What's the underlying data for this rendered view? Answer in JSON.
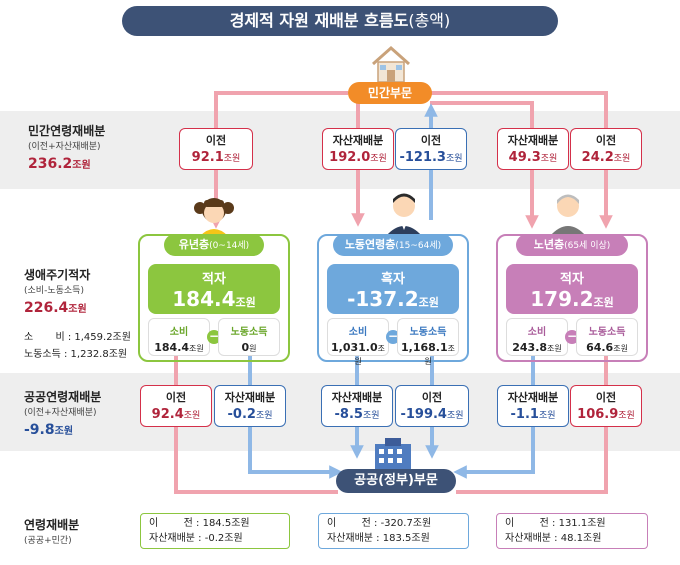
{
  "title": "경제적 자원 재배분 흐름도",
  "title_suffix": "(총액)",
  "private_sector": "민간부문",
  "public_sector": "공공(정부)부문",
  "unit": "조원",
  "unit_won": "원",
  "rows": {
    "private": {
      "label": "민간연령재배분",
      "sub": "(이전+자산재배분)",
      "value": "236.2"
    },
    "lifecycle": {
      "label": "생애주기적자",
      "sub": "(소비-노동소득)",
      "value": "226.4",
      "consumption_label": "소       비 :",
      "consumption": "1,459.2조원",
      "labor_label": "노동소득 :",
      "labor": "1,232.8조원"
    },
    "public": {
      "label": "공공연령재배분",
      "sub": "(이전+자산재배분)",
      "value": "-9.8"
    },
    "total": {
      "label": "연령재배분",
      "sub": "(공공+민간)"
    }
  },
  "private_flows": [
    {
      "label": "이전",
      "value": "92.1"
    },
    {
      "label": "자산재배분",
      "value": "192.0"
    },
    {
      "label": "이전",
      "value": "-121.3"
    },
    {
      "label": "자산재배분",
      "value": "49.3"
    },
    {
      "label": "이전",
      "value": "24.2"
    }
  ],
  "public_flows": [
    {
      "label": "이전",
      "value": "92.4"
    },
    {
      "label": "자산재배분",
      "value": "-0.2"
    },
    {
      "label": "자산재배분",
      "value": "-8.5"
    },
    {
      "label": "이전",
      "value": "-199.4"
    },
    {
      "label": "자산재배분",
      "value": "-1.1"
    },
    {
      "label": "이전",
      "value": "106.9"
    }
  ],
  "groups": [
    {
      "name": "유년층",
      "range": "(0~14세)",
      "balance_label": "적자",
      "balance": "184.4",
      "consumption_label": "소비",
      "consumption": "184.4",
      "consumption_unit": "조원",
      "labor_label": "노동소득",
      "labor": "0",
      "labor_unit": "원",
      "sum_transfer_label": "이        전 :",
      "sum_transfer": "184.5조원",
      "sum_asset_label": "자산재배분 :",
      "sum_asset": "-0.2조원"
    },
    {
      "name": "노동연령층",
      "range": "(15~64세)",
      "balance_label": "흑자",
      "balance": "-137.2",
      "consumption_label": "소비",
      "consumption": "1,031.0",
      "consumption_unit": "조원",
      "labor_label": "노동소득",
      "labor": "1,168.1",
      "labor_unit": "조원",
      "sum_transfer_label": "이        전 :",
      "sum_transfer": "-320.7조원",
      "sum_asset_label": "자산재배분 :",
      "sum_asset": "183.5조원"
    },
    {
      "name": "노년층",
      "range": "(65세 이상)",
      "balance_label": "적자",
      "balance": "179.2",
      "consumption_label": "소비",
      "consumption": "243.8",
      "consumption_unit": "조원",
      "labor_label": "노동소득",
      "labor": "64.6",
      "labor_unit": "조원",
      "sum_transfer_label": "이        전 :",
      "sum_transfer": "131.1조원",
      "sum_asset_label": "자산재배분 :",
      "sum_asset": "48.1조원"
    }
  ],
  "colors": {
    "child": "#8cc63f",
    "worker": "#6ea8dc",
    "elder": "#c77fb8",
    "red_flow": "#f0a3ae",
    "blue_flow": "#8fb8e6",
    "dark": "#3d5276"
  }
}
